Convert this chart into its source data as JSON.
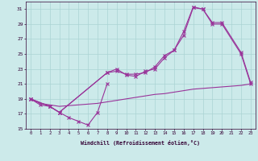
{
  "background_color": "#cceaea",
  "grid_color": "#aad4d4",
  "line_color": "#993399",
  "xlabel": "Windchill (Refroidissement éolien,°C)",
  "xlim": [
    -0.5,
    23.5
  ],
  "ylim": [
    15,
    32
  ],
  "yticks": [
    15,
    17,
    19,
    21,
    23,
    25,
    27,
    29,
    31
  ],
  "xticks": [
    0,
    1,
    2,
    3,
    4,
    5,
    6,
    7,
    8,
    9,
    10,
    11,
    12,
    13,
    14,
    15,
    16,
    17,
    18,
    19,
    20,
    21,
    22,
    23
  ],
  "curve_dip_x": [
    0,
    1,
    2,
    3,
    4,
    5,
    6,
    7,
    8
  ],
  "curve_dip_y": [
    19.0,
    18.2,
    18.0,
    17.2,
    16.5,
    16.0,
    15.5,
    17.2,
    21.0
  ],
  "curve_flat_x": [
    0,
    1,
    2,
    3,
    4,
    5,
    6,
    7,
    8,
    9,
    10,
    11,
    12,
    13,
    14,
    15,
    16,
    17,
    18,
    19,
    20,
    21,
    22,
    23
  ],
  "curve_flat_y": [
    19.0,
    18.4,
    18.2,
    18.0,
    18.1,
    18.2,
    18.3,
    18.4,
    18.6,
    18.8,
    19.0,
    19.2,
    19.4,
    19.6,
    19.7,
    19.9,
    20.1,
    20.3,
    20.4,
    20.5,
    20.6,
    20.7,
    20.8,
    21.0
  ],
  "curve_mainA_x": [
    0,
    2,
    3,
    8,
    9,
    10,
    11,
    12,
    13,
    14,
    15,
    16,
    17,
    18,
    19,
    20,
    22,
    23
  ],
  "curve_mainA_y": [
    19.0,
    18.0,
    17.2,
    22.5,
    22.7,
    22.3,
    22.3,
    22.5,
    23.3,
    24.8,
    25.5,
    27.5,
    31.2,
    31.0,
    29.0,
    29.0,
    25.0,
    21.0
  ],
  "curve_mainB_x": [
    0,
    2,
    3,
    8,
    9,
    10,
    11,
    12,
    13,
    14,
    15,
    16,
    17,
    18,
    19,
    20,
    22,
    23
  ],
  "curve_mainB_y": [
    19.0,
    18.0,
    17.2,
    22.5,
    23.0,
    22.2,
    22.0,
    22.7,
    23.0,
    24.5,
    25.5,
    28.0,
    31.3,
    31.0,
    29.2,
    29.2,
    25.2,
    21.2
  ]
}
